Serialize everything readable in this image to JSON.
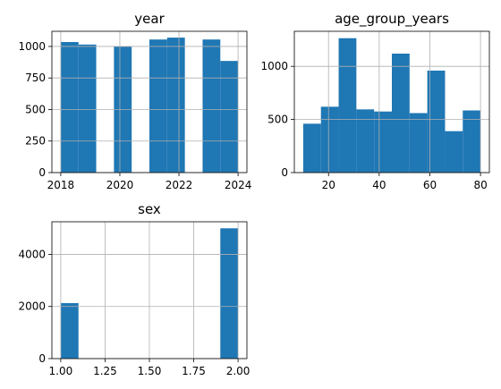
{
  "chart_data": [
    {
      "type": "bar",
      "title": "year",
      "xlim": [
        2017.7,
        2024.3
      ],
      "ylim": [
        0,
        1120
      ],
      "xticks": [
        2018,
        2020,
        2022,
        2024
      ],
      "yticks": [
        0,
        250,
        500,
        750,
        1000
      ],
      "grid": true,
      "bins": [
        {
          "x0": 2018.0,
          "x1": 2018.6,
          "value": 1035
        },
        {
          "x0": 2018.6,
          "x1": 2019.2,
          "value": 1015
        },
        {
          "x0": 2019.8,
          "x1": 2020.4,
          "value": 1000
        },
        {
          "x0": 2021.0,
          "x1": 2021.6,
          "value": 1055
        },
        {
          "x0": 2021.6,
          "x1": 2022.2,
          "value": 1070
        },
        {
          "x0": 2022.8,
          "x1": 2023.4,
          "value": 1055
        },
        {
          "x0": 2023.4,
          "x1": 2024.0,
          "value": 885
        }
      ]
    },
    {
      "type": "bar",
      "title": "age_group_years",
      "xlim": [
        6.5,
        83.5
      ],
      "ylim": [
        0,
        1330
      ],
      "xticks": [
        20,
        40,
        60,
        80
      ],
      "yticks": [
        0,
        500,
        1000
      ],
      "grid": true,
      "bins": [
        {
          "x0": 10,
          "x1": 17,
          "value": 460
        },
        {
          "x0": 17,
          "x1": 24,
          "value": 620
        },
        {
          "x0": 24,
          "x1": 31,
          "value": 1265
        },
        {
          "x0": 31,
          "x1": 38,
          "value": 595
        },
        {
          "x0": 38,
          "x1": 45,
          "value": 575
        },
        {
          "x0": 45,
          "x1": 52,
          "value": 1120
        },
        {
          "x0": 52,
          "x1": 59,
          "value": 560
        },
        {
          "x0": 59,
          "x1": 66,
          "value": 960
        },
        {
          "x0": 66,
          "x1": 73,
          "value": 390
        },
        {
          "x0": 73,
          "x1": 80,
          "value": 585
        }
      ]
    },
    {
      "type": "bar",
      "title": "sex",
      "xlim": [
        0.95,
        2.05
      ],
      "ylim": [
        0,
        5250
      ],
      "xticks": [
        "1.00",
        "1.25",
        "1.50",
        "1.75",
        "2.00"
      ],
      "yticks": [
        0,
        2000,
        4000
      ],
      "grid": true,
      "bins": [
        {
          "x0": 1.0,
          "x1": 1.1,
          "value": 2130
        },
        {
          "x0": 1.9,
          "x1": 2.0,
          "value": 5000
        }
      ]
    }
  ]
}
